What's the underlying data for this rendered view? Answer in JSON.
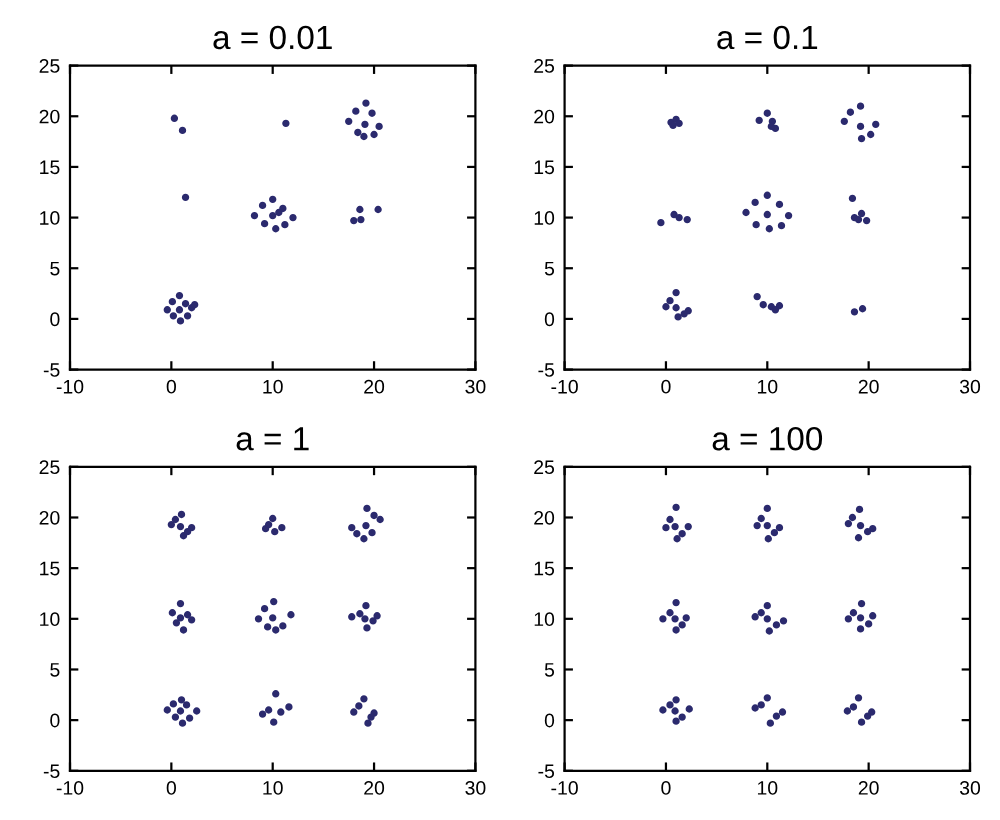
{
  "chart_data": [
    {
      "type": "scatter",
      "title": "a = 0.01",
      "xlim": [
        -10,
        30
      ],
      "ylim": [
        -5,
        25
      ],
      "xticks": [
        -10,
        0,
        10,
        20,
        30
      ],
      "yticks": [
        -5,
        0,
        5,
        10,
        15,
        20,
        25
      ],
      "grid": false,
      "marker": "circle",
      "series": [
        {
          "color": "#2b2a6e",
          "x": [
            -0.4,
            2.0,
            0.8,
            0.9,
            0.1,
            1.6,
            0.8,
            1.4,
            0.2,
            2.3,
            8.2,
            12.0,
            10.0,
            10.3,
            9.0,
            11.2,
            10.0,
            11.0,
            9.2,
            10.6,
            17.5,
            20.5,
            19.2,
            19.0,
            18.2,
            20.0,
            19.1,
            19.8,
            18.4,
            0.3,
            1.1,
            1.4,
            11.3,
            18.6,
            20.4,
            18.0,
            18.7
          ],
          "values": [
            0.9,
            1.1,
            2.3,
            -0.2,
            1.7,
            0.3,
            0.9,
            1.5,
            0.3,
            1.4,
            10.2,
            10.0,
            11.8,
            8.9,
            11.2,
            9.3,
            10.2,
            10.9,
            9.4,
            10.5,
            19.5,
            19.0,
            21.3,
            18.0,
            20.5,
            18.2,
            19.2,
            20.3,
            18.4,
            19.8,
            18.6,
            12.0,
            19.3,
            10.8,
            10.8,
            9.7,
            9.8
          ]
        }
      ]
    },
    {
      "type": "scatter",
      "title": "a = 0.1",
      "xlim": [
        -10,
        30
      ],
      "ylim": [
        -5,
        25
      ],
      "xticks": [
        -10,
        0,
        10,
        20,
        30
      ],
      "yticks": [
        -5,
        0,
        5,
        10,
        15,
        20,
        25
      ],
      "grid": false,
      "marker": "circle",
      "series": [
        {
          "color": "#2b2a6e",
          "x": [
            0.0,
            2.2,
            1.0,
            1.2,
            0.4,
            1.8,
            1.0,
            7.9,
            12.1,
            10.0,
            10.2,
            8.8,
            11.4,
            10.0,
            11.2,
            8.9,
            17.6,
            20.7,
            19.2,
            19.3,
            18.2,
            20.2,
            19.2,
            0.5,
            1.0,
            0.7,
            1.3,
            9.2,
            10.0,
            10.5,
            10.8,
            10.4,
            -0.5,
            0.8,
            1.3,
            2.1,
            18.4,
            18.6,
            19.3,
            19.8,
            19.0,
            9.0,
            9.6,
            10.4,
            11.2,
            10.8,
            18.6,
            19.4
          ],
          "values": [
            1.2,
            0.8,
            2.6,
            0.2,
            1.8,
            0.5,
            1.1,
            10.5,
            10.2,
            12.2,
            8.9,
            11.5,
            9.2,
            10.3,
            11.3,
            9.3,
            19.5,
            19.2,
            21.0,
            17.8,
            20.4,
            18.2,
            19.0,
            19.4,
            19.7,
            19.1,
            19.3,
            19.6,
            20.3,
            19.5,
            18.8,
            19.0,
            9.5,
            10.3,
            10.0,
            9.8,
            11.9,
            10.0,
            10.4,
            9.7,
            9.8,
            2.2,
            1.4,
            1.2,
            1.3,
            0.9,
            0.7,
            1.0
          ]
        }
      ]
    },
    {
      "type": "scatter",
      "title": "a = 1",
      "xlim": [
        -10,
        30
      ],
      "ylim": [
        -5,
        25
      ],
      "xticks": [
        -10,
        0,
        10,
        20,
        30
      ],
      "yticks": [
        -5,
        0,
        5,
        10,
        15,
        20,
        25
      ],
      "grid": false,
      "marker": "circle",
      "series": [
        {
          "color": "#2b2a6e",
          "x": [
            0.0,
            2.0,
            1.0,
            1.2,
            0.4,
            1.6,
            0.9,
            9.3,
            10.9,
            10.0,
            10.2,
            9.6,
            17.8,
            20.6,
            19.3,
            19.0,
            18.3,
            20.0,
            19.2,
            19.8,
            0.1,
            2.0,
            0.9,
            1.2,
            0.5,
            1.6,
            0.9,
            8.6,
            11.8,
            10.1,
            10.3,
            9.2,
            11.0,
            10.0,
            9.5,
            17.8,
            20.3,
            19.2,
            19.3,
            18.6,
            19.9,
            19.1,
            -0.4,
            2.5,
            1.0,
            1.1,
            0.2,
            1.8,
            0.9,
            1.5,
            0.4,
            9.0,
            11.6,
            10.3,
            10.1,
            9.6,
            10.8,
            18.0,
            20.0,
            19.0,
            19.4,
            18.5,
            19.7
          ],
          "values": [
            19.3,
            19.0,
            20.3,
            18.2,
            19.8,
            18.6,
            19.1,
            18.9,
            19.0,
            19.9,
            18.6,
            19.3,
            19.0,
            19.8,
            20.9,
            17.9,
            18.4,
            20.2,
            19.2,
            18.5,
            10.6,
            9.9,
            11.5,
            8.9,
            9.6,
            10.4,
            10.1,
            10.0,
            10.4,
            11.7,
            8.9,
            11.0,
            9.3,
            10.1,
            9.2,
            10.2,
            10.3,
            11.3,
            9.1,
            10.5,
            9.8,
            10.0,
            1.0,
            0.9,
            2.0,
            -0.3,
            1.6,
            0.2,
            0.9,
            1.5,
            0.3,
            0.6,
            1.3,
            2.6,
            -0.2,
            1.0,
            0.8,
            0.8,
            0.7,
            2.1,
            -0.3,
            1.4,
            0.3
          ]
        }
      ]
    },
    {
      "type": "scatter",
      "title": "a = 100",
      "xlim": [
        -10,
        30
      ],
      "ylim": [
        -5,
        25
      ],
      "xticks": [
        -10,
        0,
        10,
        20,
        30
      ],
      "yticks": [
        -5,
        0,
        5,
        10,
        15,
        20,
        25
      ],
      "grid": false,
      "marker": "circle",
      "series": [
        {
          "color": "#2b2a6e",
          "x": [
            0.0,
            2.2,
            1.0,
            1.1,
            0.4,
            1.6,
            0.9,
            9.0,
            11.2,
            10.0,
            10.1,
            9.4,
            10.7,
            10.0,
            18.0,
            20.4,
            19.1,
            19.0,
            18.4,
            19.9,
            19.2,
            -0.3,
            2.0,
            1.0,
            1.0,
            0.4,
            1.6,
            0.9,
            8.8,
            11.6,
            10.0,
            10.2,
            9.4,
            10.9,
            10.0,
            18.0,
            20.4,
            19.3,
            19.2,
            18.5,
            20.0,
            19.2,
            -0.3,
            2.3,
            1.0,
            1.0,
            0.4,
            1.6,
            0.9,
            8.8,
            11.5,
            10.0,
            10.3,
            9.4,
            10.9,
            17.9,
            20.3,
            19.0,
            19.3,
            18.5,
            19.9
          ],
          "values": [
            19.0,
            19.1,
            21.0,
            17.9,
            19.8,
            18.4,
            19.1,
            19.2,
            19.0,
            20.9,
            17.9,
            19.9,
            18.5,
            19.2,
            19.4,
            18.9,
            20.8,
            18.0,
            20.0,
            18.6,
            19.2,
            10.0,
            10.1,
            11.6,
            8.9,
            10.6,
            9.4,
            10.0,
            10.2,
            9.8,
            11.3,
            8.8,
            10.6,
            9.4,
            10.0,
            10.0,
            10.3,
            11.5,
            9.0,
            10.6,
            9.5,
            10.1,
            1.0,
            1.1,
            2.0,
            -0.1,
            1.5,
            0.3,
            0.9,
            1.2,
            0.8,
            2.2,
            -0.3,
            1.5,
            0.4,
            0.9,
            0.8,
            2.2,
            -0.2,
            1.3,
            0.4
          ]
        }
      ]
    }
  ]
}
